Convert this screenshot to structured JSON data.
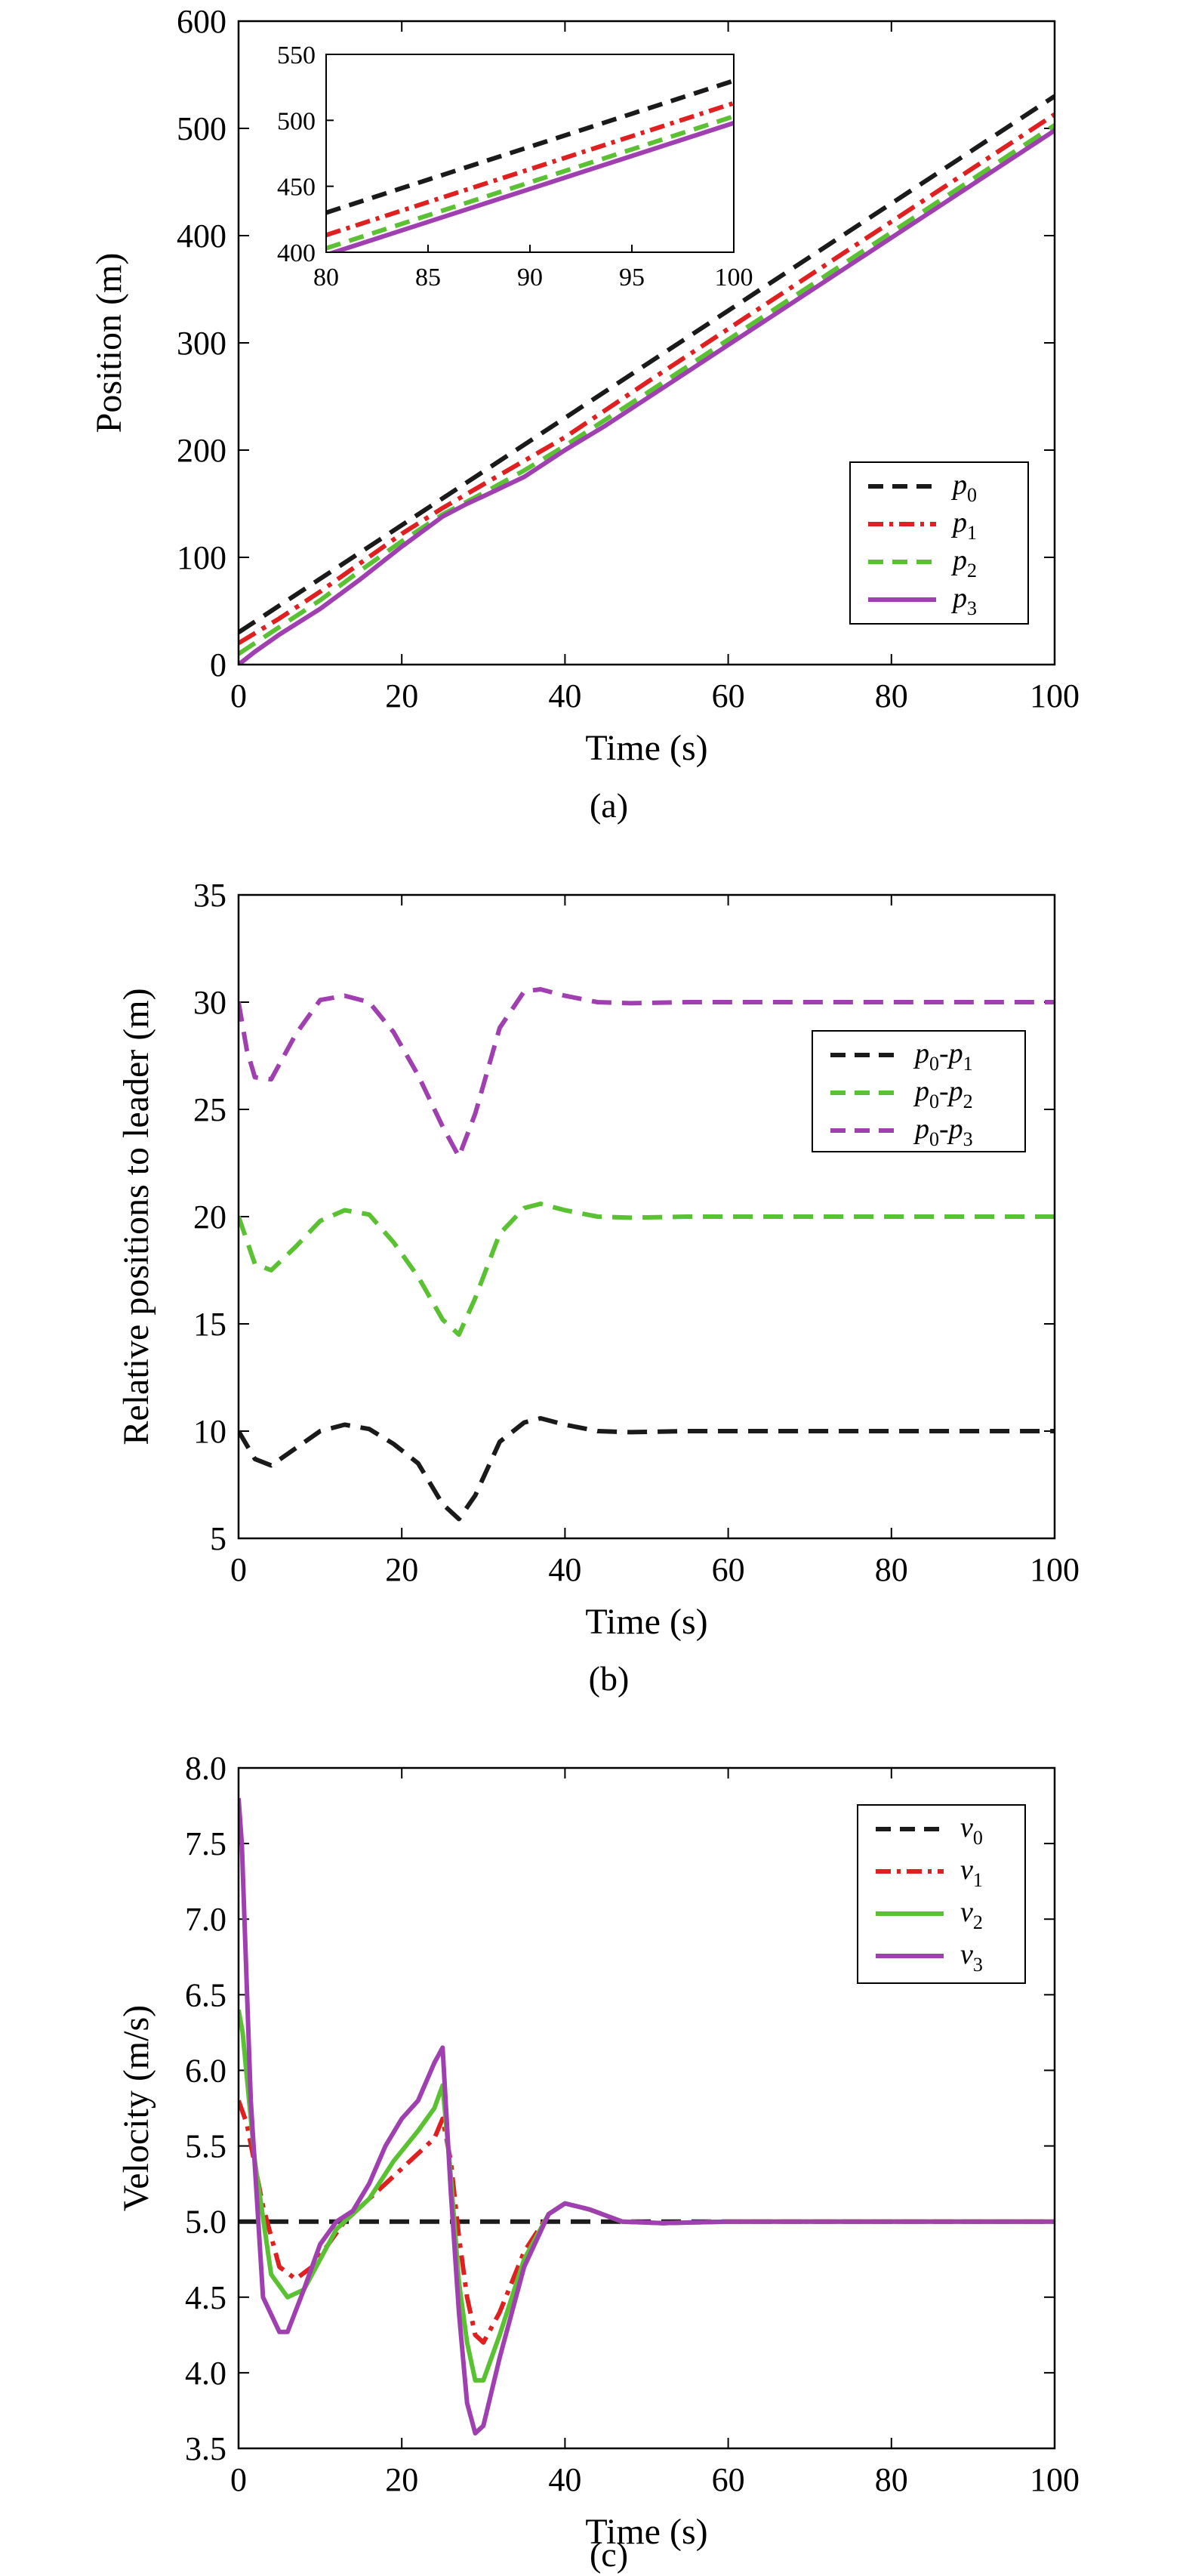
{
  "colors": {
    "black": "#1a1a1a",
    "red": "#e02020",
    "green": "#5ac232",
    "purple": "#a040b0"
  },
  "chart_data": [
    {
      "type": "line",
      "caption": "(a)",
      "xlabel": "Time (s)",
      "ylabel": "Position (m)",
      "xlim": [
        0,
        100
      ],
      "ylim": [
        0,
        600
      ],
      "xticks": [
        "0",
        "20",
        "40",
        "60",
        "80",
        "100"
      ],
      "yticks": [
        "0",
        "100",
        "200",
        "300",
        "400",
        "500",
        "600"
      ],
      "legend_position": "bottom-right",
      "series": [
        {
          "name": "p",
          "sub": "0",
          "color": "#1a1a1a",
          "dash": "dash",
          "x": [
            0,
            10,
            20,
            30,
            40,
            50,
            60,
            70,
            80,
            90,
            100
          ],
          "y": [
            30,
            80,
            130,
            180,
            230,
            280,
            330,
            380,
            430,
            480,
            530
          ]
        },
        {
          "name": "p",
          "sub": "1",
          "color": "#e02020",
          "dash": "dashdot",
          "x": [
            0,
            5,
            10,
            15,
            20,
            25,
            30,
            35,
            40,
            50,
            60,
            70,
            80,
            90,
            100
          ],
          "y": [
            20,
            43,
            68,
            95,
            122,
            146,
            168,
            190,
            212,
            263,
            313,
            363,
            413,
            463,
            513
          ]
        },
        {
          "name": "p",
          "sub": "2",
          "color": "#5ac232",
          "dash": "dash",
          "x": [
            0,
            5,
            10,
            15,
            20,
            25,
            30,
            35,
            40,
            50,
            60,
            70,
            80,
            90,
            100
          ],
          "y": [
            10,
            35,
            60,
            88,
            115,
            140,
            160,
            181,
            204,
            253,
            303,
            353,
            403,
            453,
            503
          ]
        },
        {
          "name": "p",
          "sub": "3",
          "color": "#a040b0",
          "dash": "solid",
          "x": [
            0,
            2,
            5,
            10,
            15,
            20,
            25,
            28,
            30,
            35,
            40,
            45,
            50,
            60,
            70,
            80,
            90,
            100
          ],
          "y": [
            0,
            12,
            28,
            52,
            80,
            110,
            138,
            150,
            157,
            175,
            200,
            223,
            248,
            298,
            348,
            398,
            448,
            498
          ]
        }
      ],
      "inset": {
        "xlim": [
          80,
          100
        ],
        "ylim": [
          400,
          550
        ],
        "xticks": [
          "80",
          "85",
          "90",
          "95",
          "100"
        ],
        "yticks": [
          "400",
          "450",
          "500",
          "550"
        ]
      }
    },
    {
      "type": "line",
      "caption": "(b)",
      "xlabel": "Time (s)",
      "ylabel": "Relative positions to leader (m)",
      "xlim": [
        0,
        100
      ],
      "ylim": [
        5,
        35
      ],
      "xticks": [
        "0",
        "20",
        "40",
        "60",
        "80",
        "100"
      ],
      "yticks": [
        "5",
        "10",
        "15",
        "20",
        "25",
        "30",
        "35"
      ],
      "legend_position": "top-right",
      "series": [
        {
          "name": "p",
          "sub": "0",
          "sub2": "1",
          "color": "#1a1a1a",
          "dash": "dash",
          "x": [
            0,
            2,
            4,
            7,
            10,
            13,
            16,
            19,
            22,
            25,
            27,
            29,
            32,
            35,
            37,
            40,
            44,
            48,
            55,
            70,
            100
          ],
          "y": [
            10,
            8.7,
            8.4,
            9.2,
            10.0,
            10.3,
            10.1,
            9.4,
            8.5,
            6.6,
            5.9,
            7.0,
            9.5,
            10.4,
            10.6,
            10.3,
            10.0,
            9.95,
            10,
            10,
            10
          ]
        },
        {
          "name": "p",
          "sub": "0",
          "sub2": "2",
          "color": "#5ac232",
          "dash": "dash",
          "x": [
            0,
            2,
            4,
            7,
            10,
            13,
            16,
            19,
            22,
            25,
            27,
            29,
            32,
            35,
            37,
            40,
            44,
            48,
            55,
            70,
            100
          ],
          "y": [
            20,
            17.8,
            17.5,
            18.6,
            19.8,
            20.3,
            20.1,
            18.8,
            17.2,
            15.2,
            14.5,
            16.2,
            19.2,
            20.4,
            20.6,
            20.3,
            20.0,
            19.95,
            20,
            20,
            20
          ]
        },
        {
          "name": "p",
          "sub": "0",
          "sub2": "3",
          "color": "#a040b0",
          "dash": "dash",
          "x": [
            0,
            1,
            2,
            4,
            7,
            10,
            13,
            16,
            19,
            22,
            25,
            27,
            29,
            32,
            35,
            37,
            40,
            44,
            48,
            55,
            70,
            100
          ],
          "y": [
            30,
            27.8,
            26.5,
            26.4,
            28.5,
            30.1,
            30.3,
            30.0,
            28.6,
            26.6,
            24.2,
            22.8,
            24.8,
            28.8,
            30.5,
            30.6,
            30.3,
            30.0,
            29.95,
            30,
            30,
            30
          ]
        }
      ]
    },
    {
      "type": "line",
      "caption": "(c)",
      "xlabel": "Time (s)",
      "ylabel": "Velocity (m/s)",
      "xlim": [
        0,
        100
      ],
      "ylim": [
        3.5,
        8.0
      ],
      "xticks": [
        "0",
        "20",
        "40",
        "60",
        "80",
        "100"
      ],
      "yticks": [
        "3.5",
        "4.0",
        "4.5",
        "5.0",
        "5.5",
        "6.0",
        "6.5",
        "7.0",
        "7.5",
        "8.0"
      ],
      "legend_position": "top-right",
      "series": [
        {
          "name": "v",
          "sub": "0",
          "color": "#1a1a1a",
          "dash": "dash",
          "x": [
            0,
            100
          ],
          "y": [
            5.0,
            5.0
          ]
        },
        {
          "name": "v",
          "sub": "1",
          "color": "#e02020",
          "dash": "dashdot",
          "x": [
            0,
            1,
            3,
            5,
            7,
            9,
            11,
            13,
            16,
            19,
            22,
            24,
            25,
            26,
            27,
            28,
            29,
            30,
            32,
            35,
            38,
            40,
            43,
            47,
            52,
            60,
            100
          ],
          "y": [
            5.8,
            5.65,
            5.1,
            4.7,
            4.62,
            4.7,
            4.85,
            5.0,
            5.15,
            5.3,
            5.45,
            5.55,
            5.68,
            5.4,
            4.9,
            4.5,
            4.25,
            4.2,
            4.4,
            4.8,
            5.05,
            5.12,
            5.08,
            5.0,
            4.99,
            5.0,
            5.0
          ]
        },
        {
          "name": "v",
          "sub": "2",
          "color": "#5ac232",
          "dash": "solid",
          "x": [
            0,
            0.5,
            2,
            4,
            6,
            8,
            10,
            12,
            14,
            16,
            19,
            22,
            24,
            25,
            26,
            27,
            28,
            29,
            30,
            32,
            35,
            38,
            40,
            43,
            47,
            52,
            60,
            100
          ],
          "y": [
            6.4,
            6.25,
            5.4,
            4.65,
            4.5,
            4.55,
            4.75,
            4.95,
            5.05,
            5.15,
            5.4,
            5.6,
            5.75,
            5.9,
            5.3,
            4.6,
            4.2,
            3.95,
            3.95,
            4.25,
            4.75,
            5.05,
            5.12,
            5.08,
            5.0,
            4.99,
            5.0,
            5.0
          ]
        },
        {
          "name": "v",
          "sub": "3",
          "color": "#a040b0",
          "dash": "solid",
          "x": [
            0,
            0.4,
            1.5,
            3,
            5,
            6,
            8,
            10,
            12,
            14,
            16,
            18,
            20,
            22,
            24,
            25,
            26,
            27,
            28,
            29,
            30,
            32,
            35,
            38,
            40,
            43,
            47,
            52,
            60,
            100
          ],
          "y": [
            7.8,
            7.5,
            5.8,
            4.5,
            4.27,
            4.27,
            4.55,
            4.85,
            5.0,
            5.07,
            5.25,
            5.5,
            5.68,
            5.8,
            6.05,
            6.15,
            5.2,
            4.4,
            3.8,
            3.6,
            3.65,
            4.1,
            4.7,
            5.05,
            5.12,
            5.08,
            5.0,
            4.99,
            5.0,
            5.0
          ]
        }
      ]
    }
  ]
}
